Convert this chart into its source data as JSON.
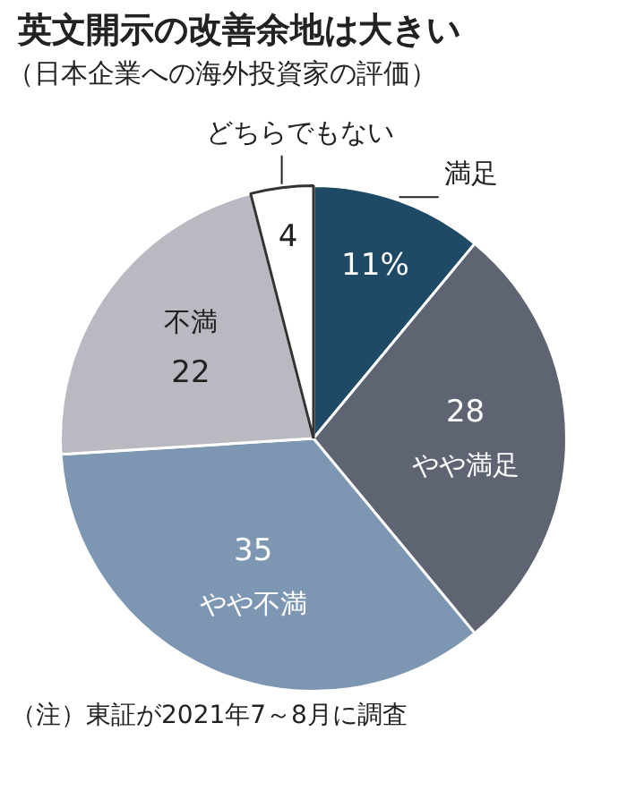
{
  "chart_data": {
    "type": "pie",
    "title": "英文開示の改善余地は大きい",
    "subtitle": "（日本企業への海外投資家の評価）",
    "categories": [
      "満足",
      "やや満足",
      "やや不満",
      "不満",
      "どちらでもない"
    ],
    "values": [
      11,
      28,
      35,
      22,
      4
    ],
    "colors": [
      "#1f4a66",
      "#5e6472",
      "#7d97b3",
      "#b9b9c2",
      "#ffffff"
    ],
    "value_labels": [
      "11%",
      "28",
      "35",
      "22",
      "4"
    ],
    "annotations": [
      "（注）東証が2021年7～8月に調査"
    ]
  }
}
